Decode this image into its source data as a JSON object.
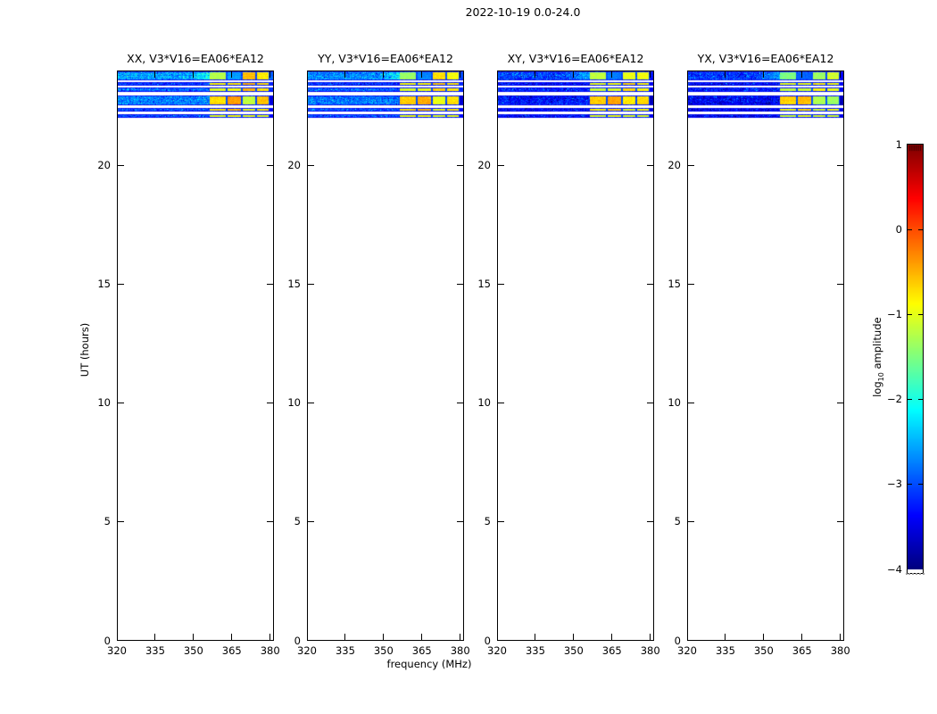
{
  "chart_data": {
    "type": "heatmap",
    "title": "2022-10-19 0.0-24.0",
    "xlabel": "frequency (MHz)",
    "ylabel": "UT (hours)",
    "xlim": [
      320,
      381.5
    ],
    "ylim": [
      0,
      24
    ],
    "xticks": [
      320,
      335,
      350,
      365,
      380
    ],
    "yticks": [
      0,
      5,
      10,
      15,
      20
    ],
    "grid": false,
    "colorbar": {
      "label_pre": "log",
      "label_sub": "10",
      "label_post": " amplitude",
      "label_text": "log10 amplitude",
      "ticks": [
        1,
        0,
        -1,
        -2,
        -3,
        -4
      ],
      "vmin": -4,
      "vmax": 1,
      "colormap": "jet",
      "top_color": "#800000",
      "bottom_color": "#000080"
    },
    "patch_start_mhz": 356.5,
    "patch_blocks_mhz": [
      [
        356.5,
        362.6
      ],
      [
        363.3,
        368.5
      ],
      [
        369.2,
        374.2
      ],
      [
        374.9,
        379.3
      ],
      [
        379.6,
        381.5
      ]
    ],
    "separator_level": -3.0,
    "bands_ut": [
      {
        "ut_start": 23.6,
        "ut_end": 23.96
      },
      {
        "ut_start": 23.37,
        "ut_end": 23.5
      },
      {
        "ut_start": 23.1,
        "ut_end": 23.29
      },
      {
        "ut_start": 22.52,
        "ut_end": 22.95
      },
      {
        "ut_start": 22.26,
        "ut_end": 22.41
      },
      {
        "ut_start": 22.02,
        "ut_end": 22.15
      }
    ],
    "panels": [
      {
        "label": "XX, V3*V16=EA06*EA12",
        "pol": "XX",
        "bands": [
          {
            "noise": -2.6,
            "blocks": [
              -1.25,
              -2.6,
              -0.55,
              -0.8,
              -2.9
            ]
          },
          {
            "noise": -3.1,
            "blocks": [
              -0.85,
              -0.8,
              -0.5,
              -0.7,
              -3.2
            ]
          },
          {
            "noise": -2.9,
            "blocks": [
              -1.05,
              -0.95,
              -0.55,
              -0.75,
              -3.2
            ]
          },
          {
            "noise": -2.7,
            "blocks": [
              -0.7,
              -0.35,
              -1.15,
              -0.55,
              -3.5
            ]
          },
          {
            "noise": -3.0,
            "blocks": [
              -0.75,
              -0.55,
              -0.95,
              -0.75,
              -3.4
            ]
          },
          {
            "noise": -3.0,
            "blocks": [
              -1.0,
              -0.9,
              -1.0,
              -1.0,
              -3.4
            ]
          }
        ]
      },
      {
        "label": "YY, V3*V16=EA06*EA12",
        "pol": "YY",
        "bands": [
          {
            "noise": -2.65,
            "blocks": [
              -1.35,
              -2.7,
              -0.7,
              -0.9,
              -3.0
            ]
          },
          {
            "noise": -3.1,
            "blocks": [
              -0.9,
              -0.85,
              -0.6,
              -0.75,
              -3.2
            ]
          },
          {
            "noise": -2.95,
            "blocks": [
              -1.1,
              -1.0,
              -0.7,
              -0.8,
              -3.2
            ]
          },
          {
            "noise": -2.85,
            "blocks": [
              -0.65,
              -0.5,
              -1.0,
              -0.75,
              -3.6
            ]
          },
          {
            "noise": -3.05,
            "blocks": [
              -0.8,
              -0.6,
              -1.0,
              -0.8,
              -3.4
            ]
          },
          {
            "noise": -3.05,
            "blocks": [
              -1.0,
              -0.95,
              -1.05,
              -1.0,
              -3.4
            ]
          }
        ]
      },
      {
        "label": "XY, V3*V16=EA06*EA12",
        "pol": "XY",
        "bands": [
          {
            "noise": -3.05,
            "blocks": [
              -1.2,
              -2.8,
              -1.0,
              -0.95,
              -3.3
            ]
          },
          {
            "noise": -3.3,
            "blocks": [
              -0.95,
              -0.9,
              -0.65,
              -0.8,
              -3.4
            ]
          },
          {
            "noise": -3.2,
            "blocks": [
              -1.15,
              -1.05,
              -0.7,
              -0.85,
              -3.4
            ]
          },
          {
            "noise": -3.3,
            "blocks": [
              -0.65,
              -0.45,
              -0.8,
              -0.7,
              -3.7
            ]
          },
          {
            "noise": -3.35,
            "blocks": [
              -0.85,
              -0.65,
              -1.0,
              -0.85,
              -3.5
            ]
          },
          {
            "noise": -3.35,
            "blocks": [
              -1.05,
              -0.95,
              -1.05,
              -1.05,
              -3.5
            ]
          }
        ]
      },
      {
        "label": "YX, V3*V16=EA06*EA12",
        "pol": "YX",
        "bands": [
          {
            "noise": -3.1,
            "blocks": [
              -1.5,
              -2.9,
              -1.35,
              -1.1,
              -3.4
            ]
          },
          {
            "noise": -3.35,
            "blocks": [
              -1.0,
              -0.95,
              -0.8,
              -0.9,
              -3.4
            ]
          },
          {
            "noise": -3.25,
            "blocks": [
              -1.2,
              -1.1,
              -0.85,
              -0.95,
              -3.4
            ]
          },
          {
            "noise": -3.4,
            "blocks": [
              -0.65,
              -0.55,
              -1.25,
              -1.35,
              -3.7
            ]
          },
          {
            "noise": -3.4,
            "blocks": [
              -0.9,
              -0.7,
              -1.05,
              -0.9,
              -3.5
            ]
          },
          {
            "noise": -3.4,
            "blocks": [
              -1.1,
              -1.0,
              -1.1,
              -1.1,
              -3.5
            ]
          }
        ]
      }
    ]
  }
}
